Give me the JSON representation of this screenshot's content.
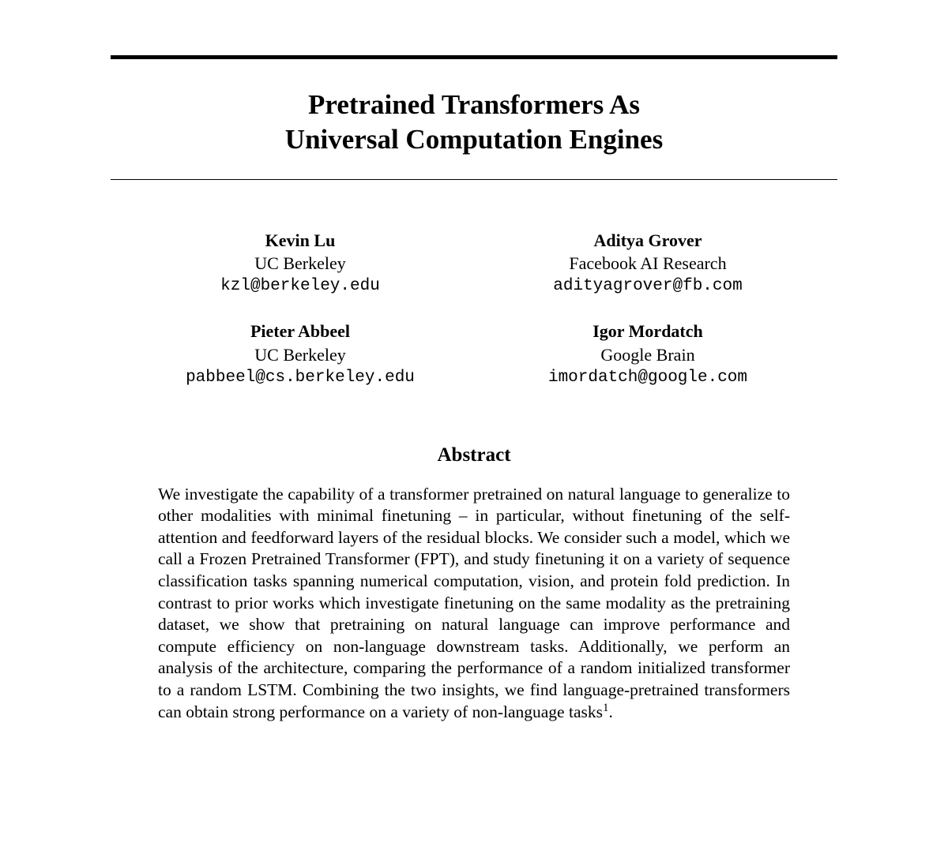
{
  "title_line1": "Pretrained Transformers As",
  "title_line2": "Universal Computation Engines",
  "authors": [
    {
      "name": "Kevin Lu",
      "affil": "UC Berkeley",
      "email": "kzl@berkeley.edu"
    },
    {
      "name": "Aditya Grover",
      "affil": "Facebook AI Research",
      "email": "adityagrover@fb.com"
    },
    {
      "name": "Pieter Abbeel",
      "affil": "UC Berkeley",
      "email": "pabbeel@cs.berkeley.edu"
    },
    {
      "name": "Igor Mordatch",
      "affil": "Google Brain",
      "email": "imordatch@google.com"
    }
  ],
  "abstract_heading": "Abstract",
  "abstract_text": "We investigate the capability of a transformer pretrained on natural language to generalize to other modalities with minimal finetuning – in particular, without finetuning of the self-attention and feedforward layers of the residual blocks. We consider such a model, which we call a Frozen Pretrained Transformer (FPT), and study finetuning it on a variety of sequence classification tasks spanning numerical computation, vision, and protein fold prediction. In contrast to prior works which investigate finetuning on the same modality as the pretraining dataset, we show that pretraining on natural language can improve performance and compute efficiency on non-language downstream tasks. Additionally, we perform an analysis of the architecture, comparing the performance of a random initialized transformer to a random LSTM. Combining the two insights, we find language-pretrained transformers can obtain strong performance on a variety of non-language tasks",
  "footnote_marker": "1",
  "abstract_tail": "."
}
